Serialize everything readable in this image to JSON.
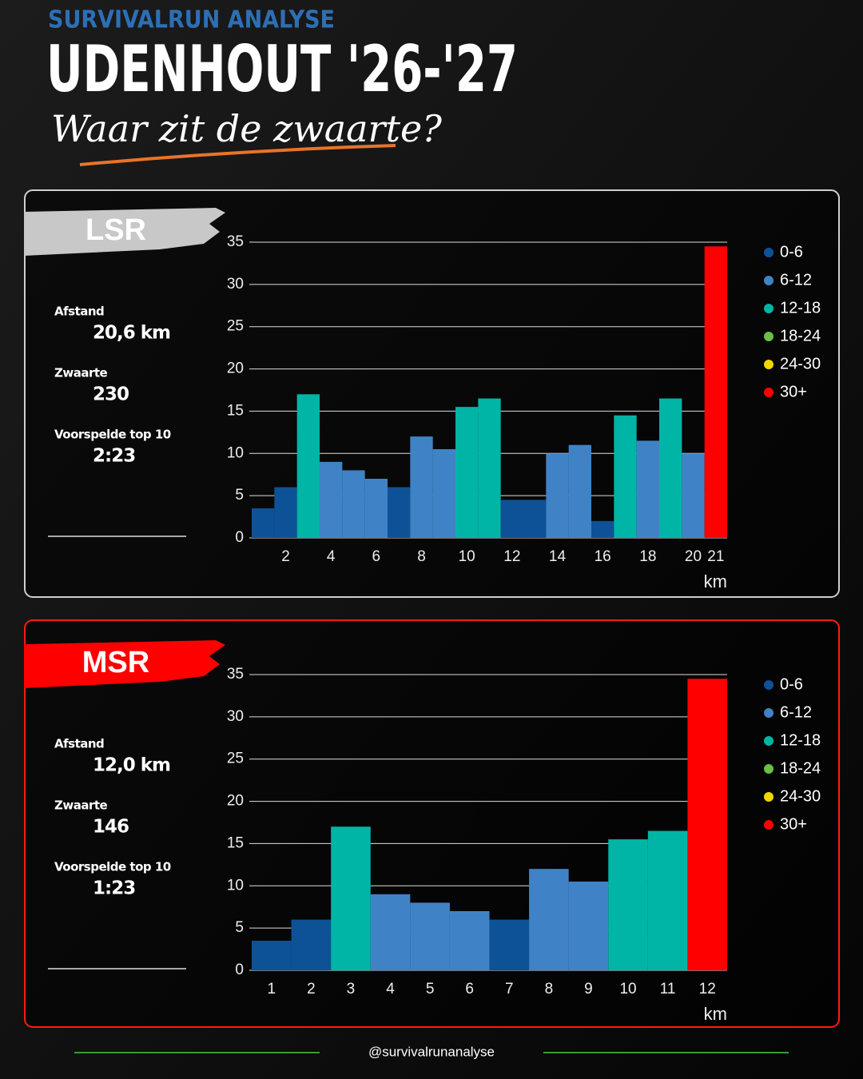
{
  "header": {
    "kicker": "SURVIVALRUN ANALYSE",
    "title": "UDENHOUT '26-'27",
    "subtitle": "Waar zit de zwaarte?"
  },
  "chart_data": [
    {
      "type": "bar",
      "label": "LSR",
      "stats": [
        {
          "label": "Afstand",
          "value": "20,6 km"
        },
        {
          "label": "Zwaarte",
          "value": "230"
        },
        {
          "label": "Voorspelde top 10",
          "value": "2:23"
        }
      ],
      "categories": [
        null,
        "2",
        null,
        "4",
        null,
        "6",
        null,
        "8",
        null,
        "10",
        null,
        "12",
        null,
        "14",
        null,
        "16",
        null,
        "18",
        null,
        "20",
        "21"
      ],
      "values": [
        3.5,
        6,
        17,
        9,
        8,
        7,
        6,
        12,
        10.5,
        15.5,
        16.5,
        4.5,
        4.5,
        10,
        11,
        2,
        14.5,
        11.5,
        16.5,
        10,
        34.5
      ],
      "colors": [
        "#0d5297",
        "#0d5297",
        "#00b5a5",
        "#3f83c6",
        "#3f83c6",
        "#3f83c6",
        "#0d5297",
        "#3f83c6",
        "#3f83c6",
        "#00b5a5",
        "#00b5a5",
        "#0d5297",
        "#0d5297",
        "#3f83c6",
        "#3f83c6",
        "#0d5297",
        "#00b5a5",
        "#3f83c6",
        "#00b5a5",
        "#3f83c6",
        "#ff0000"
      ],
      "ylim": [
        0,
        35
      ],
      "yticks": [
        0,
        5,
        10,
        15,
        20,
        25,
        30,
        35
      ],
      "grid": true,
      "x_label": "km",
      "legend": [
        {
          "name": "0-6",
          "color": "#0d5297"
        },
        {
          "name": "6-12",
          "color": "#3f83c6"
        },
        {
          "name": "12-18",
          "color": "#00b5a5"
        },
        {
          "name": "18-24",
          "color": "#6abf45"
        },
        {
          "name": "24-30",
          "color": "#f2d600"
        },
        {
          "name": "30+",
          "color": "#ff0000"
        }
      ]
    },
    {
      "type": "bar",
      "label": "MSR",
      "stats": [
        {
          "label": "Afstand",
          "value": "12,0 km"
        },
        {
          "label": "Zwaarte",
          "value": "146"
        },
        {
          "label": "Voorspelde top 10",
          "value": "1:23"
        }
      ],
      "categories": [
        "1",
        "2",
        "3",
        "4",
        "5",
        "6",
        "7",
        "8",
        "9",
        "10",
        "11",
        "12"
      ],
      "values": [
        3.5,
        6,
        17,
        9,
        8,
        7,
        6,
        12,
        10.5,
        15.5,
        16.5,
        34.5
      ],
      "colors": [
        "#0d5297",
        "#0d5297",
        "#00b5a5",
        "#3f83c6",
        "#3f83c6",
        "#3f83c6",
        "#0d5297",
        "#3f83c6",
        "#3f83c6",
        "#00b5a5",
        "#00b5a5",
        "#ff0000"
      ],
      "ylim": [
        0,
        35
      ],
      "yticks": [
        0,
        5,
        10,
        15,
        20,
        25,
        30,
        35
      ],
      "grid": true,
      "x_label": "km",
      "legend": [
        {
          "name": "0-6",
          "color": "#0d5297"
        },
        {
          "name": "6-12",
          "color": "#3f83c6"
        },
        {
          "name": "12-18",
          "color": "#00b5a5"
        },
        {
          "name": "18-24",
          "color": "#6abf45"
        },
        {
          "name": "24-30",
          "color": "#f2d600"
        },
        {
          "name": "30+",
          "color": "#ff0000"
        }
      ]
    }
  ],
  "footer": "@survivalrunanalyse"
}
